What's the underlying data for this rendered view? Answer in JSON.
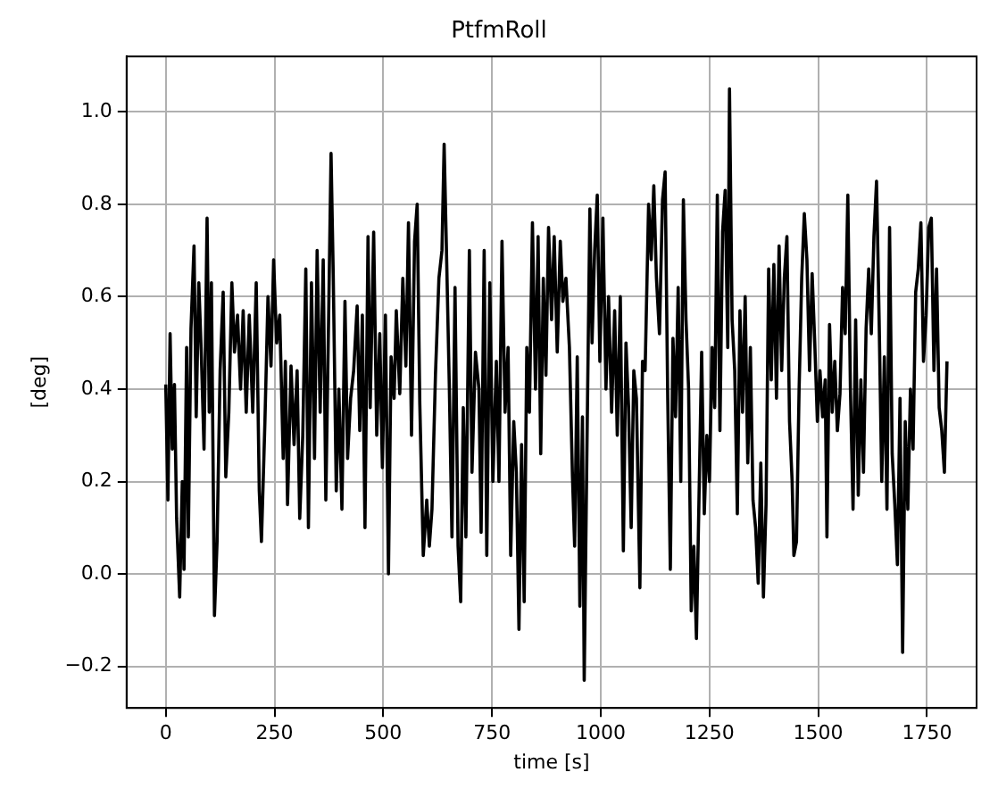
{
  "chart_data": {
    "type": "line",
    "title": "PtfmRoll",
    "xlabel": "time [s]",
    "ylabel": "[deg]",
    "x": [
      0,
      5,
      10,
      15,
      20,
      25,
      32,
      38,
      42,
      48,
      52,
      58,
      65,
      70,
      76,
      82,
      88,
      95,
      100,
      105,
      112,
      118,
      125,
      132,
      138,
      145,
      152,
      158,
      165,
      172,
      178,
      185,
      192,
      200,
      208,
      215,
      220,
      228,
      235,
      242,
      248,
      255,
      262,
      270,
      275,
      280,
      288,
      295,
      302,
      308,
      315,
      322,
      328,
      335,
      342,
      348,
      355,
      362,
      368,
      375,
      380,
      385,
      392,
      398,
      405,
      412,
      418,
      425,
      432,
      440,
      446,
      452,
      458,
      465,
      470,
      478,
      485,
      492,
      498,
      505,
      512,
      518,
      525,
      530,
      538,
      545,
      552,
      558,
      565,
      572,
      578,
      584,
      592,
      600,
      606,
      612,
      620,
      628,
      635,
      640,
      646,
      652,
      658,
      665,
      672,
      678,
      684,
      690,
      698,
      704,
      712,
      720,
      725,
      732,
      738,
      745,
      752,
      760,
      766,
      773,
      780,
      787,
      793,
      800,
      806,
      812,
      818,
      824,
      830,
      836,
      843,
      850,
      856,
      862,
      868,
      874,
      880,
      887,
      893,
      900,
      907,
      913,
      920,
      928,
      935,
      940,
      946,
      952,
      958,
      962,
      968,
      975,
      980,
      986,
      992,
      998,
      1005,
      1012,
      1018,
      1025,
      1032,
      1038,
      1045,
      1052,
      1058,
      1064,
      1070,
      1076,
      1082,
      1090,
      1096,
      1102,
      1110,
      1116,
      1122,
      1128,
      1135,
      1142,
      1148,
      1154,
      1160,
      1166,
      1172,
      1178,
      1184,
      1190,
      1196,
      1202,
      1208,
      1214,
      1220,
      1226,
      1232,
      1238,
      1244,
      1250,
      1256,
      1262,
      1268,
      1274,
      1280,
      1286,
      1292,
      1296,
      1302,
      1308,
      1314,
      1320,
      1326,
      1332,
      1338,
      1344,
      1350,
      1356,
      1362,
      1368,
      1374,
      1380,
      1386,
      1392,
      1398,
      1404,
      1410,
      1416,
      1422,
      1428,
      1434,
      1440,
      1444,
      1450,
      1456,
      1462,
      1468,
      1474,
      1480,
      1486,
      1492,
      1498,
      1504,
      1510,
      1516,
      1520,
      1526,
      1532,
      1538,
      1544,
      1550,
      1556,
      1562,
      1568,
      1574,
      1580,
      1586,
      1592,
      1598,
      1604,
      1610,
      1616,
      1622,
      1628,
      1634,
      1640,
      1646,
      1652,
      1658,
      1664,
      1670,
      1676,
      1682,
      1688,
      1694,
      1700,
      1706,
      1712,
      1718,
      1724,
      1730,
      1736,
      1742,
      1748,
      1754,
      1760,
      1766,
      1772,
      1778,
      1784,
      1790,
      1796
    ],
    "series": [
      {
        "color": "#000000",
        "values": [
          0.41,
          0.16,
          0.52,
          0.27,
          0.41,
          0.12,
          -0.05,
          0.2,
          0.01,
          0.49,
          0.08,
          0.53,
          0.71,
          0.34,
          0.63,
          0.47,
          0.27,
          0.77,
          0.35,
          0.63,
          -0.09,
          0.07,
          0.44,
          0.61,
          0.21,
          0.35,
          0.63,
          0.48,
          0.56,
          0.4,
          0.57,
          0.35,
          0.56,
          0.35,
          0.63,
          0.18,
          0.07,
          0.33,
          0.6,
          0.45,
          0.68,
          0.5,
          0.56,
          0.25,
          0.46,
          0.15,
          0.45,
          0.28,
          0.44,
          0.12,
          0.3,
          0.66,
          0.1,
          0.63,
          0.25,
          0.7,
          0.35,
          0.68,
          0.16,
          0.59,
          0.91,
          0.65,
          0.18,
          0.4,
          0.14,
          0.59,
          0.25,
          0.38,
          0.44,
          0.58,
          0.31,
          0.56,
          0.1,
          0.73,
          0.36,
          0.74,
          0.3,
          0.52,
          0.23,
          0.56,
          0.0,
          0.47,
          0.38,
          0.57,
          0.39,
          0.64,
          0.45,
          0.76,
          0.3,
          0.72,
          0.8,
          0.37,
          0.04,
          0.16,
          0.06,
          0.14,
          0.43,
          0.64,
          0.7,
          0.93,
          0.67,
          0.4,
          0.08,
          0.62,
          0.06,
          -0.06,
          0.36,
          0.08,
          0.7,
          0.22,
          0.48,
          0.4,
          0.09,
          0.7,
          0.04,
          0.63,
          0.2,
          0.46,
          0.2,
          0.72,
          0.35,
          0.49,
          0.04,
          0.33,
          0.22,
          -0.12,
          0.28,
          -0.06,
          0.49,
          0.35,
          0.76,
          0.4,
          0.73,
          0.26,
          0.64,
          0.43,
          0.75,
          0.55,
          0.73,
          0.48,
          0.72,
          0.59,
          0.64,
          0.49,
          0.21,
          0.06,
          0.47,
          -0.07,
          0.34,
          -0.23,
          0.25,
          0.79,
          0.5,
          0.7,
          0.82,
          0.46,
          0.77,
          0.4,
          0.6,
          0.35,
          0.57,
          0.3,
          0.6,
          0.05,
          0.5,
          0.36,
          0.1,
          0.44,
          0.38,
          -0.03,
          0.46,
          0.44,
          0.8,
          0.68,
          0.84,
          0.64,
          0.52,
          0.81,
          0.87,
          0.38,
          0.01,
          0.51,
          0.34,
          0.62,
          0.2,
          0.81,
          0.55,
          0.4,
          -0.08,
          0.06,
          -0.14,
          0.17,
          0.48,
          0.13,
          0.3,
          0.2,
          0.49,
          0.36,
          0.82,
          0.31,
          0.74,
          0.83,
          0.49,
          1.05,
          0.55,
          0.44,
          0.13,
          0.57,
          0.35,
          0.6,
          0.24,
          0.49,
          0.16,
          0.1,
          -0.02,
          0.24,
          -0.05,
          0.15,
          0.66,
          0.42,
          0.67,
          0.38,
          0.71,
          0.44,
          0.64,
          0.73,
          0.33,
          0.2,
          0.04,
          0.07,
          0.4,
          0.64,
          0.78,
          0.68,
          0.44,
          0.65,
          0.5,
          0.33,
          0.44,
          0.34,
          0.42,
          0.08,
          0.54,
          0.35,
          0.46,
          0.31,
          0.39,
          0.62,
          0.52,
          0.82,
          0.4,
          0.14,
          0.55,
          0.17,
          0.42,
          0.22,
          0.53,
          0.66,
          0.52,
          0.73,
          0.85,
          0.55,
          0.2,
          0.47,
          0.14,
          0.75,
          0.26,
          0.15,
          0.02,
          0.38,
          -0.17,
          0.33,
          0.14,
          0.4,
          0.27,
          0.61,
          0.66,
          0.76,
          0.46,
          0.56,
          0.75,
          0.77,
          0.44,
          0.66,
          0.36,
          0.31,
          0.22,
          0.46
        ]
      }
    ],
    "xlim": [
      -90,
      1864
    ],
    "xticks": [
      0,
      250,
      500,
      750,
      1000,
      1250,
      1500,
      1750
    ],
    "ylim": [
      -0.29,
      1.12
    ],
    "yticks": [
      {
        "value": -0.2,
        "label": "−0.2"
      },
      {
        "value": 0,
        "label": "0.0"
      },
      {
        "value": 0.2,
        "label": "0.2"
      },
      {
        "value": 0.4,
        "label": "0.4"
      },
      {
        "value": 0.6,
        "label": "0.6"
      },
      {
        "value": 0.8,
        "label": "0.8"
      },
      {
        "value": 1,
        "label": "1.0"
      }
    ],
    "grid": true,
    "legend": false,
    "line_style": "solid",
    "marker": "none"
  }
}
